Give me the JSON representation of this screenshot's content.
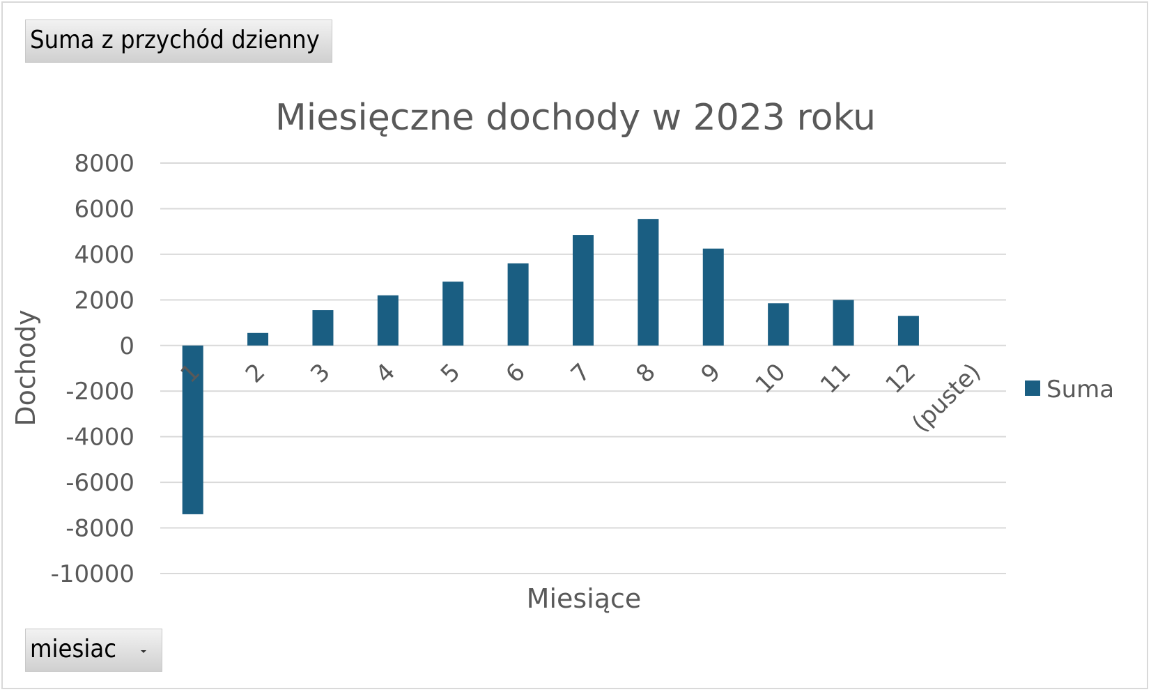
{
  "value_field_button": {
    "label": "Suma z przychód dzienny"
  },
  "filter_field_button": {
    "label": "miesiac",
    "icon": "dropdown-arrow-icon"
  },
  "legend": {
    "label": "Suma",
    "placement": "right",
    "color": "#1a5e82"
  },
  "chart_data": {
    "type": "bar",
    "title": "Miesięczne dochody w 2023 roku",
    "xlabel": "Miesiące",
    "ylabel": "Dochody",
    "categories": [
      "1",
      "2",
      "3",
      "4",
      "5",
      "6",
      "7",
      "8",
      "9",
      "10",
      "11",
      "12",
      "(puste)"
    ],
    "series": [
      {
        "name": "Suma",
        "values": [
          -7400,
          550,
          1550,
          2200,
          2800,
          3600,
          4850,
          5550,
          4250,
          1850,
          2000,
          1300,
          null
        ],
        "color": "#1a5e82"
      }
    ],
    "ylim": [
      -10000,
      8000
    ],
    "yticks": [
      8000,
      6000,
      4000,
      2000,
      0,
      -2000,
      -4000,
      -6000,
      -8000,
      -10000
    ],
    "grid": true,
    "gridline_color": "#d9d9d9",
    "text_color": "#595959"
  }
}
